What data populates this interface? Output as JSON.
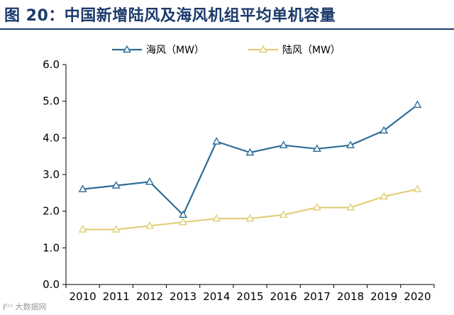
{
  "figure": {
    "title": "图 20：中国新增陆风及海风机组平均单机容量",
    "source_note": "",
    "watermark_left": "ℓ⁽ᶜ⁾ 大数据网",
    "watermark_right": "· · ·"
  },
  "chart_data": {
    "type": "line",
    "title": "图 20：中国新增陆风及海风机组平均单机容量",
    "xlabel": "",
    "ylabel": "",
    "categories": [
      "2010",
      "2011",
      "2012",
      "2013",
      "2014",
      "2015",
      "2016",
      "2017",
      "2018",
      "2019",
      "2020"
    ],
    "ylim": [
      0,
      6
    ],
    "yticks": [
      "0.0",
      "1.0",
      "2.0",
      "3.0",
      "4.0",
      "5.0",
      "6.0"
    ],
    "grid": false,
    "legend_position": "top-center",
    "series": [
      {
        "name": "海风（MW）",
        "color": "#2e6d96",
        "marker": "triangle-open",
        "values": [
          2.6,
          2.7,
          2.8,
          1.9,
          3.9,
          3.6,
          3.8,
          3.7,
          3.8,
          4.2,
          4.9
        ]
      },
      {
        "name": "陆风（MW）",
        "color": "#e2cf7c",
        "marker": "triangle-open",
        "values": [
          1.5,
          1.5,
          1.6,
          1.7,
          1.8,
          1.8,
          1.9,
          2.1,
          2.1,
          2.4,
          2.6
        ]
      }
    ]
  }
}
